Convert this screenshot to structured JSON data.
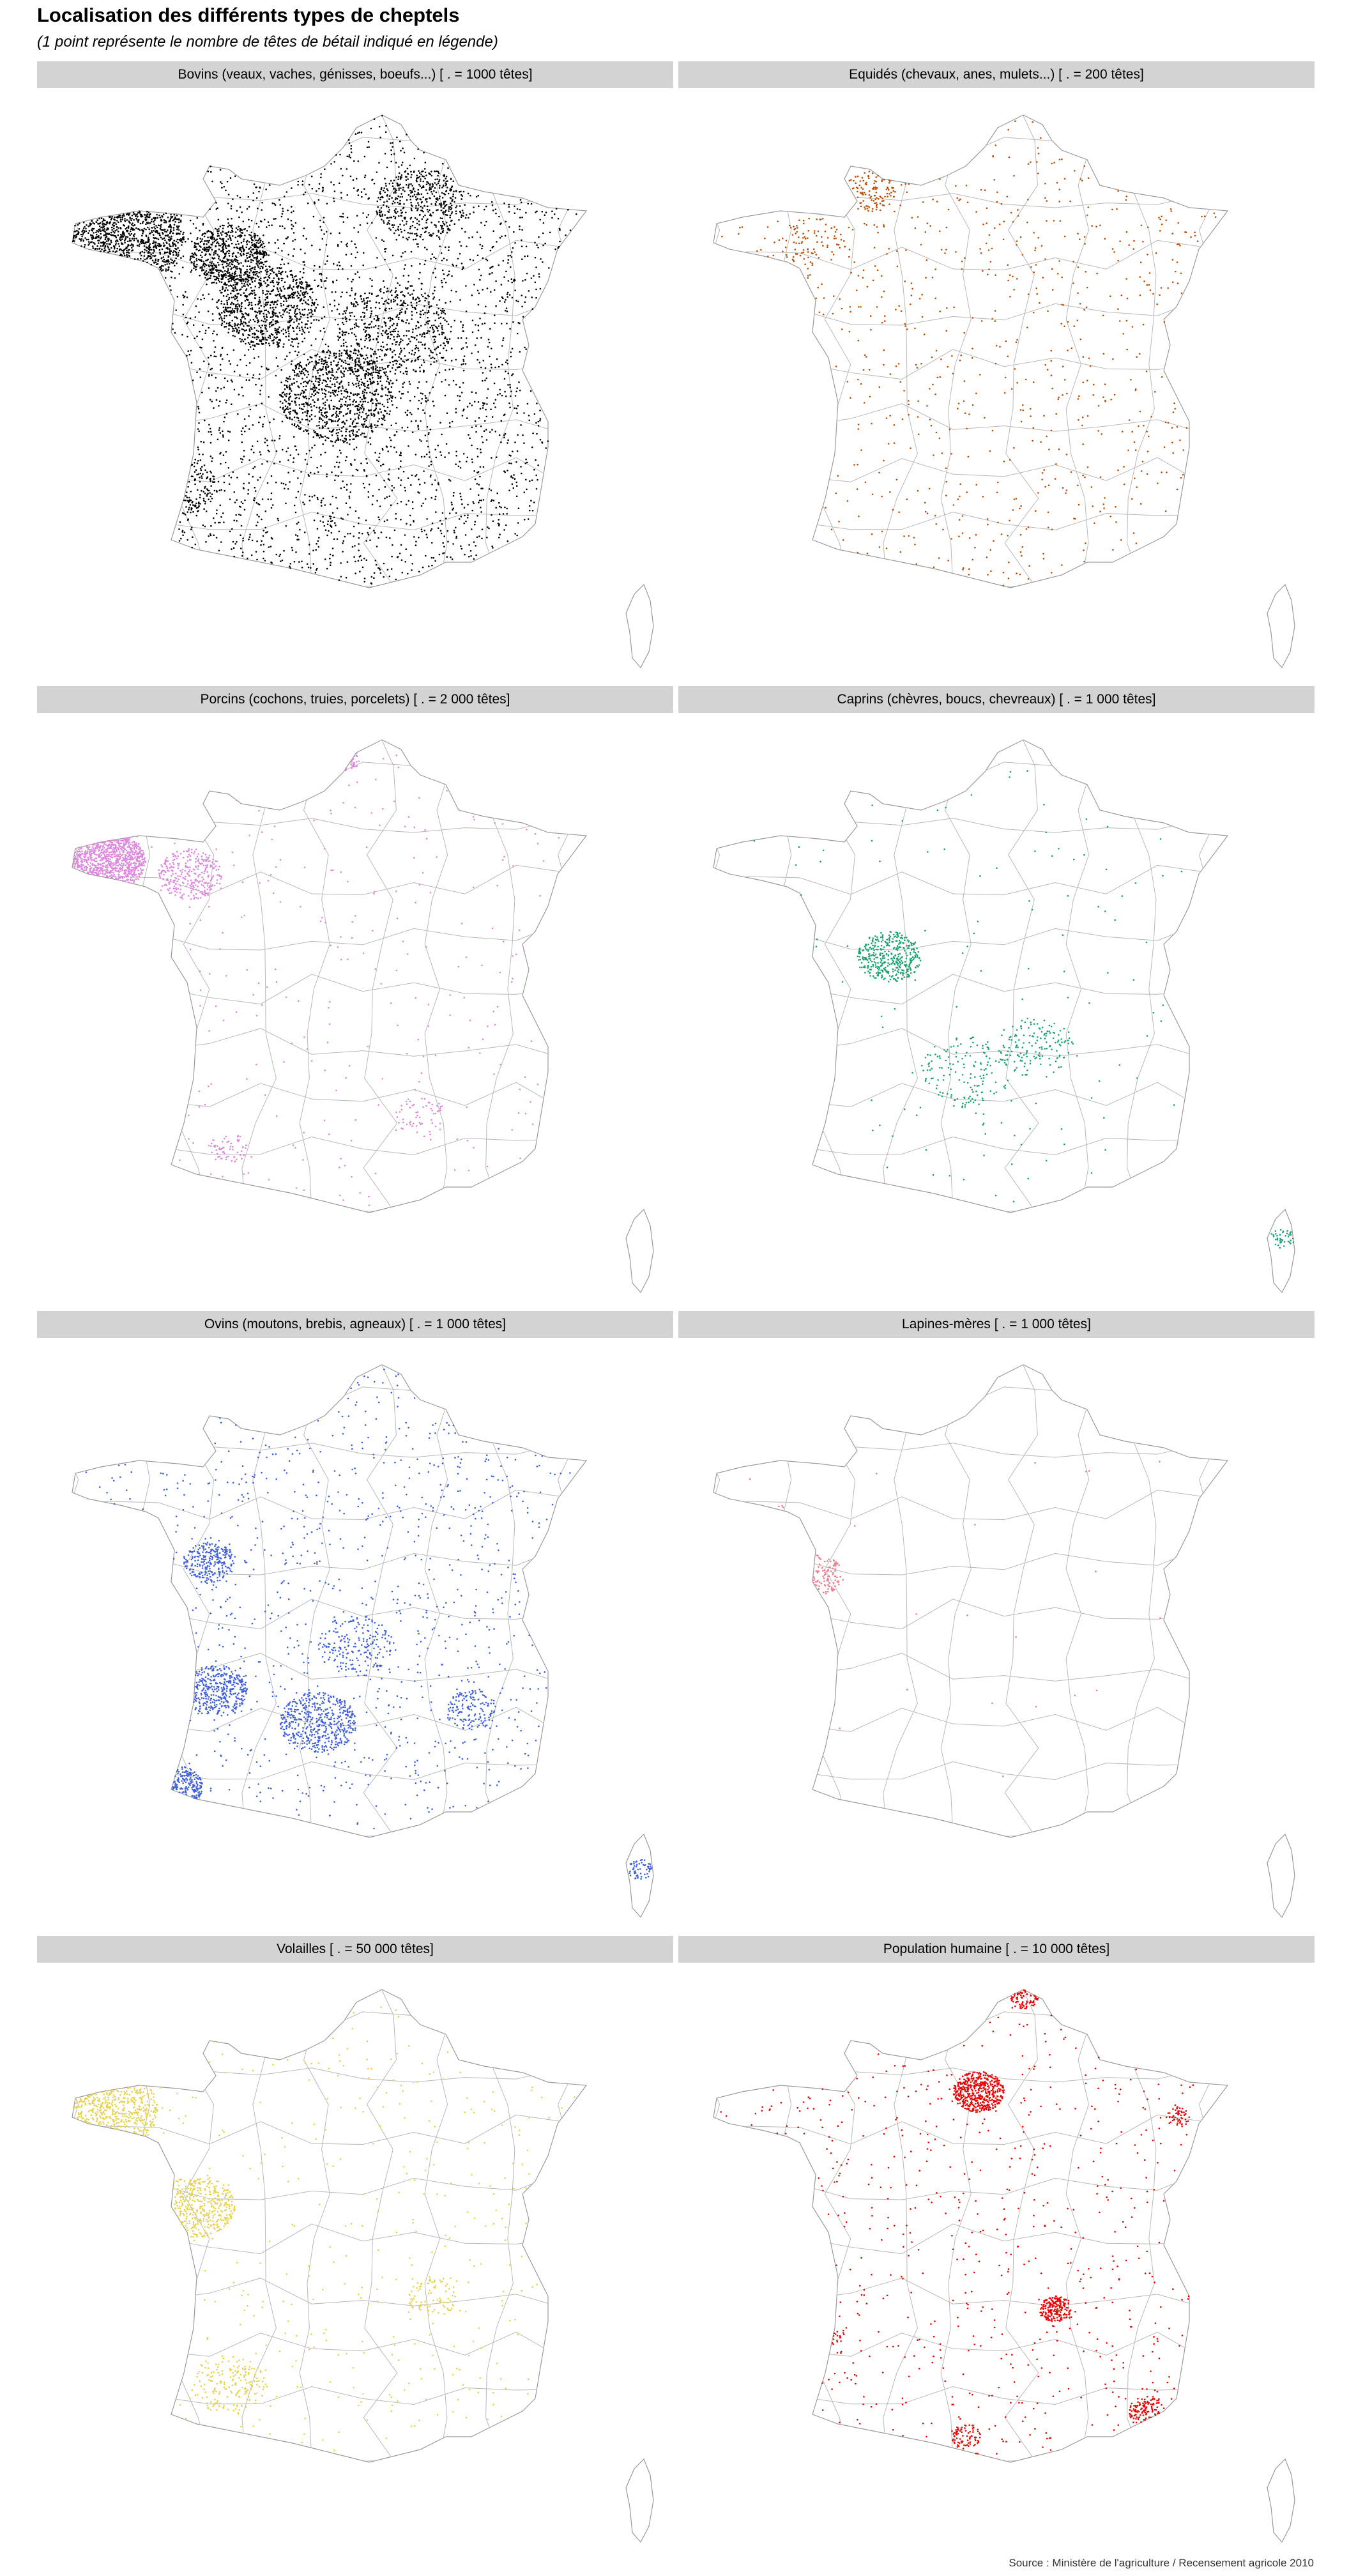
{
  "title": "Localisation des différents types de cheptels",
  "subtitle": "(1 point représente le nombre de têtes de bétail indiqué en légende)",
  "caption": "Source : Ministère de l'agriculture / Recensement agricole 2010",
  "chart_data": {
    "type": "scatter",
    "panels": [
      {
        "name": "bovins",
        "label": "Bovins (veaux, vaches, génisses, boeufs...) [ . = 1000 têtes]",
        "color": "#000000",
        "density": "very high"
      },
      {
        "name": "equides",
        "label": "Equidés (chevaux, anes, mulets...) [ . = 200 têtes]",
        "color": "#c04a00",
        "density": "medium"
      },
      {
        "name": "porcins",
        "label": "Porcins (cochons, truies, porcelets) [ . = 2 000 têtes]",
        "color": "#dd88dd",
        "density": "high in Bretagne"
      },
      {
        "name": "caprins",
        "label": "Caprins (chèvres, boucs, chevreaux) [ . = 1 000 têtes]",
        "color": "#1aa36f",
        "density": "low"
      },
      {
        "name": "ovins",
        "label": "Ovins (moutons, brebis, agneaux) [ . = 1 000 têtes]",
        "color": "#3f5fe0",
        "density": "high"
      },
      {
        "name": "lapines",
        "label": "Lapines-mères [ . = 1 000 têtes]",
        "color": "#f07a8a",
        "density": "very low"
      },
      {
        "name": "volailles",
        "label": "Volailles [ . = 50 000 têtes]",
        "color": "#e8d24a",
        "density": "high"
      },
      {
        "name": "population",
        "label": "Population humaine [ . = 10 000 têtes]",
        "color": "#ee0000",
        "density": "high"
      }
    ]
  }
}
